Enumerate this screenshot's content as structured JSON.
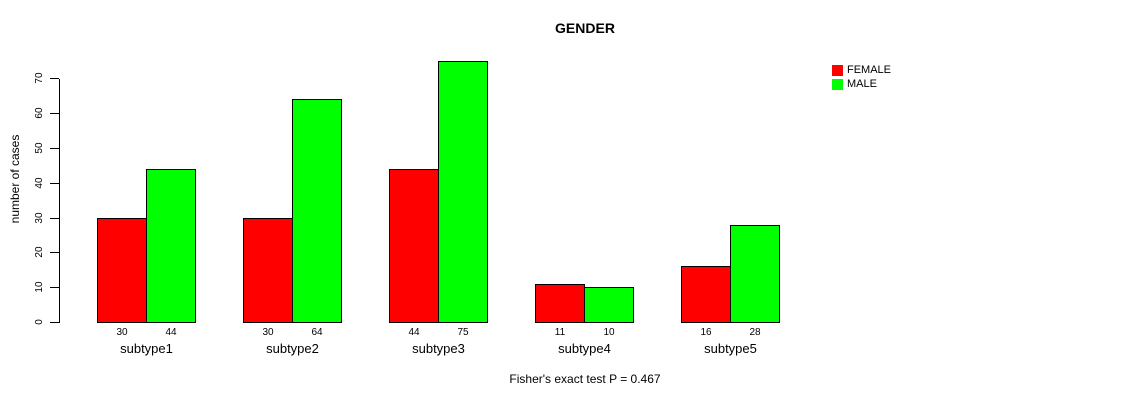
{
  "chart_data": {
    "type": "bar",
    "title": "GENDER",
    "ylabel": "number of cases",
    "xlabel": "",
    "categories": [
      "subtype1",
      "subtype2",
      "subtype3",
      "subtype4",
      "subtype5"
    ],
    "series": [
      {
        "name": "FEMALE",
        "color": "#FF0000",
        "values": [
          30,
          30,
          44,
          11,
          16
        ]
      },
      {
        "name": "MALE",
        "color": "#00FF00",
        "values": [
          44,
          64,
          75,
          10,
          28
        ]
      }
    ],
    "bar_value_labels_shown": true,
    "yticks": [
      0,
      10,
      20,
      30,
      40,
      50,
      60,
      70
    ],
    "ylim": [
      0,
      70
    ],
    "grid": false,
    "legend_position": "top-right",
    "annotation": "Fisher's exact test P = 0.467"
  }
}
